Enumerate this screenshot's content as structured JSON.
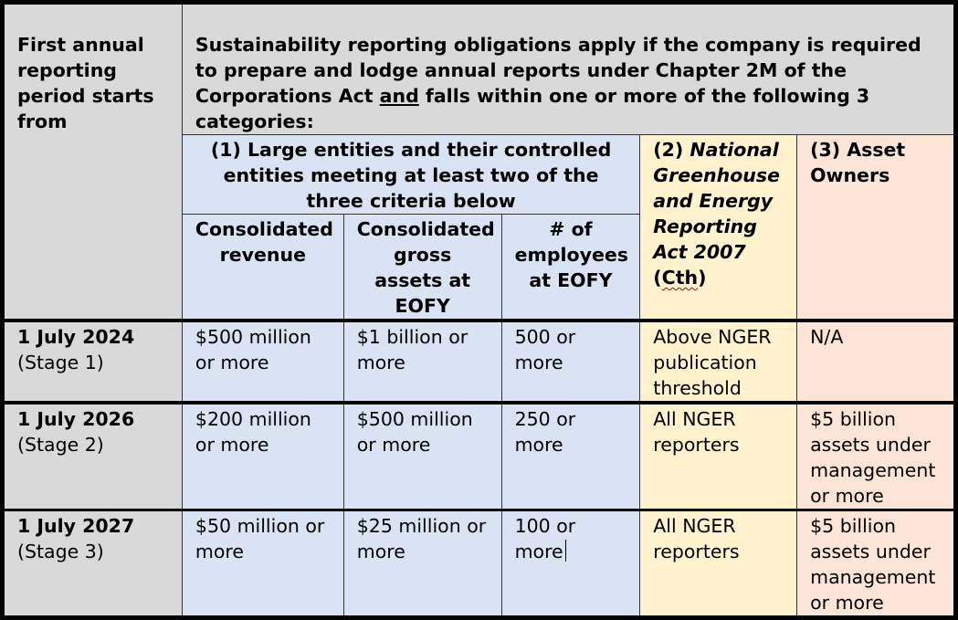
{
  "header": {
    "first_period": "First annual reporting period starts from",
    "obligations_before": "Sustainability reporting obligations apply if the company is required to prepare and lodge annual reports under Chapter 2M of the Corporations Act ",
    "obligations_and": "and",
    "obligations_after": " falls within one or more of the following 3 categories:",
    "cat1_title": "(1) Large entities and their controlled entities meeting at least two of the three criteria below",
    "cat2_prefix": "(2) ",
    "cat2_italic": "National Greenhouse and Energy Reporting Act 2007",
    "cat2_suffix_open": " (",
    "cat2_cth": "Cth",
    "cat2_suffix_close": ")",
    "cat3_title": "(3) Asset Owners",
    "col_revenue": "Consolidated revenue",
    "col_assets": "Consolidated gross assets at EOFY",
    "col_employees": "# of employees at EOFY"
  },
  "rows": [
    {
      "date": "1 July 2024",
      "stage": "(Stage 1)",
      "revenue": "$500 million or more",
      "assets": "$1 billion or more",
      "employees": "500 or more",
      "nger": "Above NGER publication threshold",
      "asset_owners": "N/A"
    },
    {
      "date": "1 July 2026",
      "stage": "(Stage 2)",
      "revenue": "$200 million or more",
      "assets": "$500 million or more",
      "employees": "250 or more",
      "nger": "All NGER reporters",
      "asset_owners": "$5 billion assets under management or more"
    },
    {
      "date": "1 July 2027",
      "stage": "(Stage 3)",
      "revenue": "$50 million or more",
      "assets": "$25 million or more",
      "employees": "100 or more",
      "nger": "All NGER reporters",
      "asset_owners": "$5 billion assets under management or more"
    }
  ]
}
